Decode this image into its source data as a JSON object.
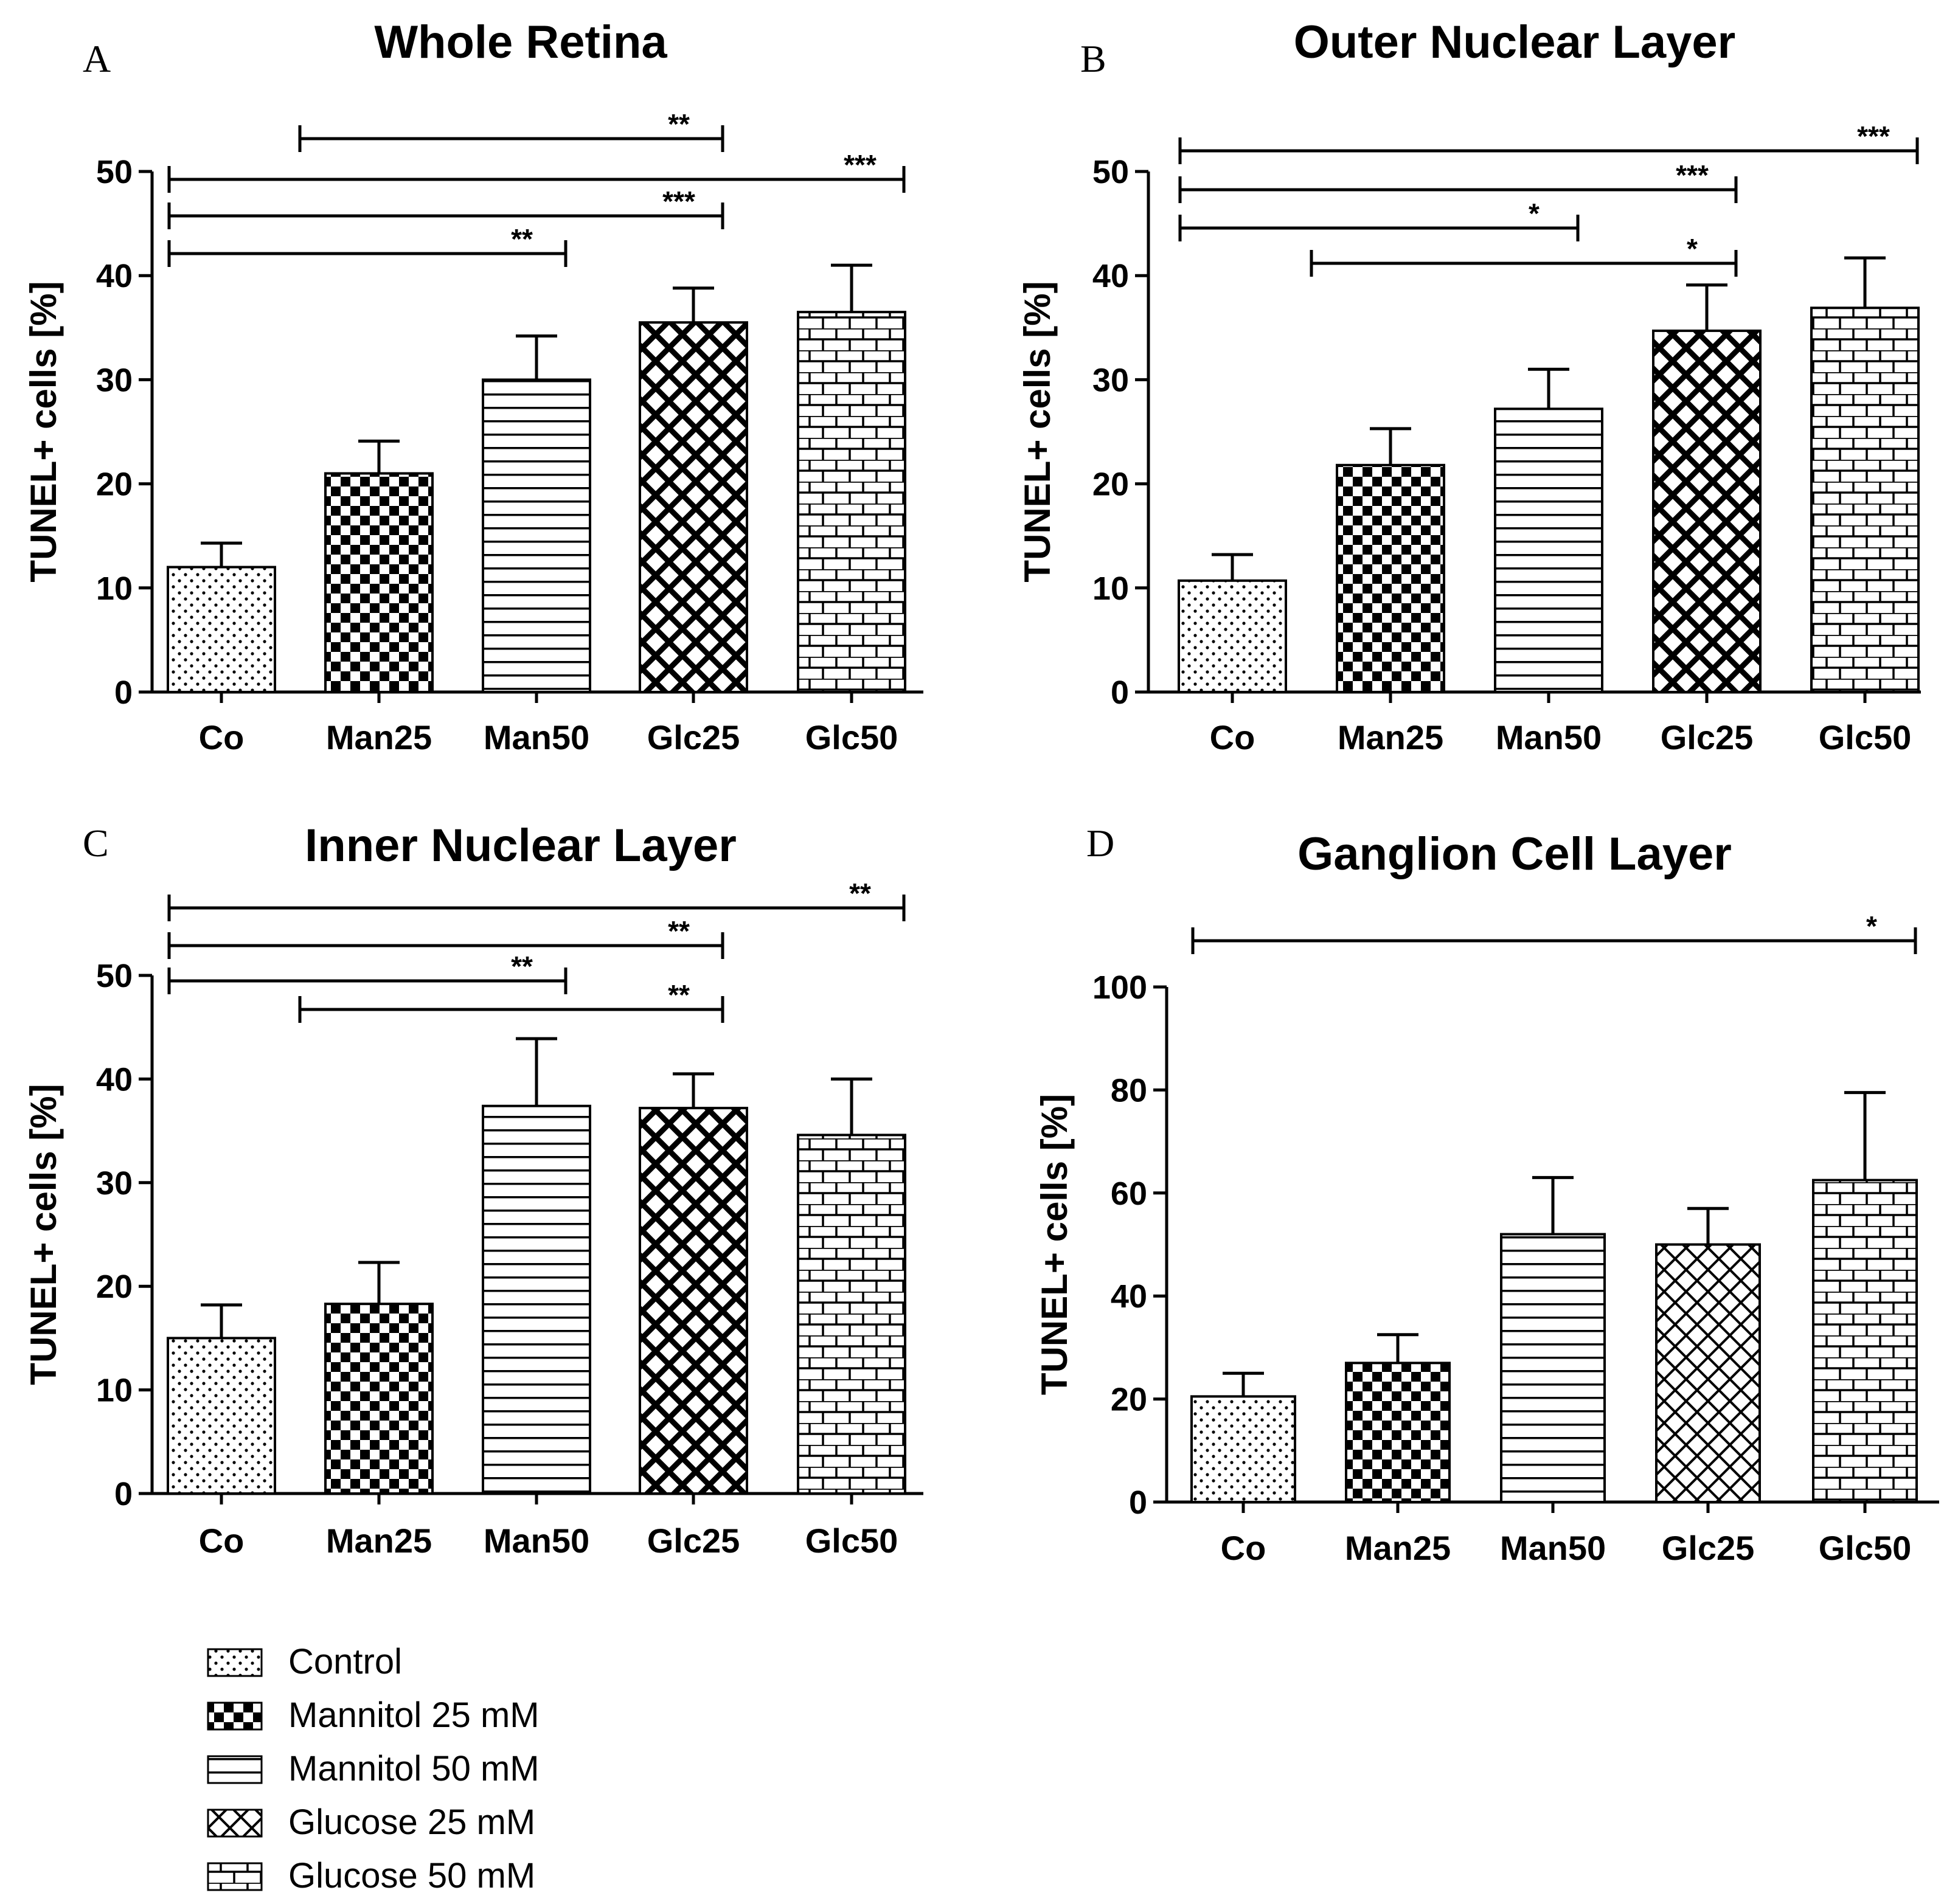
{
  "legend": [
    {
      "key": "dots",
      "label": "Control"
    },
    {
      "key": "checker",
      "label": "Mannitol 25 mM"
    },
    {
      "key": "hlines",
      "label": "Mannitol 50 mM"
    },
    {
      "key": "xhatch",
      "label": "Glucose 25 mM"
    },
    {
      "key": "brick",
      "label": "Glucose 50 mM"
    }
  ],
  "chart_data": [
    {
      "type": "bar",
      "panel": "A",
      "title": "Whole  Retina",
      "ylabel": "TUNEL+ cells [%]",
      "categories": [
        "Co",
        "Man25",
        "Man50",
        "Glc25",
        "Glc50"
      ],
      "patterns": [
        "dots",
        "checker",
        "hlines",
        "xhatch",
        "brick"
      ],
      "values": [
        12,
        21,
        30,
        35.5,
        36.5
      ],
      "errors": [
        2.3,
        3.1,
        4.2,
        3.3,
        4.5
      ],
      "ylim": [
        0,
        50
      ],
      "yticks": [
        0,
        10,
        20,
        30,
        40,
        50
      ],
      "ytick_labels": [
        "0",
        "10",
        "20",
        "30",
        "40",
        "50"
      ],
      "significance": [
        {
          "from": "Man25",
          "to": "Glc25",
          "label": "**"
        },
        {
          "from": "Co",
          "to": "Glc50",
          "label": "***"
        },
        {
          "from": "Co",
          "to": "Glc25",
          "label": "***"
        },
        {
          "from": "Co",
          "to": "Man50",
          "label": "**"
        }
      ]
    },
    {
      "type": "bar",
      "panel": "B",
      "title": "Outer Nuclear Layer",
      "ylabel": "TUNEL+ cells [%]",
      "categories": [
        "Co",
        "Man25",
        "Man50",
        "Glc25",
        "Glc50"
      ],
      "patterns": [
        "dots",
        "checker",
        "hlines",
        "xhatch",
        "brick"
      ],
      "values": [
        10.7,
        21.8,
        27.2,
        34.7,
        36.9
      ],
      "errors": [
        2.5,
        3.5,
        3.8,
        4.4,
        4.8
      ],
      "ylim": [
        0,
        50
      ],
      "yticks": [
        0,
        10,
        20,
        30,
        40,
        50
      ],
      "ytick_labels": [
        "0",
        "10",
        "20",
        "30",
        "40",
        "50"
      ],
      "significance": [
        {
          "from": "Co",
          "to": "Glc50",
          "label": "***"
        },
        {
          "from": "Co",
          "to": "Glc25",
          "label": "***"
        },
        {
          "from": "Co",
          "to": "Man50",
          "label": "*"
        },
        {
          "from": "Man25",
          "to": "Glc25",
          "label": "*"
        }
      ]
    },
    {
      "type": "bar",
      "panel": "C",
      "title": "Inner Nuclear Layer",
      "ylabel": "TUNEL+ cells [%]",
      "categories": [
        "Co",
        "Man25",
        "Man50",
        "Glc25",
        "Glc50"
      ],
      "patterns": [
        "dots",
        "checker",
        "hlines",
        "xhatch",
        "brick"
      ],
      "values": [
        15,
        18.3,
        37.4,
        37.2,
        34.6
      ],
      "errors": [
        3.2,
        4.0,
        6.5,
        3.3,
        5.4
      ],
      "ylim": [
        0,
        50
      ],
      "yticks": [
        0,
        10,
        20,
        30,
        40,
        50
      ],
      "ytick_labels": [
        "0",
        "10",
        "20",
        "30",
        "40",
        "50"
      ],
      "significance": [
        {
          "from": "Co",
          "to": "Glc50",
          "label": "**"
        },
        {
          "from": "Co",
          "to": "Glc25",
          "label": "**"
        },
        {
          "from": "Co",
          "to": "Man50",
          "label": "**"
        },
        {
          "from": "Man25",
          "to": "Glc25",
          "label": "**"
        }
      ]
    },
    {
      "type": "bar",
      "panel": "D",
      "title": "Ganglion Cell Layer",
      "ylabel": "TUNEL+ cells [%]",
      "categories": [
        "Co",
        "Man25",
        "Man50",
        "Glc25",
        "Glc50"
      ],
      "patterns": [
        "dots",
        "checker",
        "hlines",
        "xhatch",
        "brick"
      ],
      "values": [
        20.5,
        27,
        52,
        50,
        62.5
      ],
      "errors": [
        4.5,
        5.5,
        11,
        7,
        17
      ],
      "ylim": [
        0,
        100
      ],
      "yticks": [
        0,
        20,
        40,
        60,
        80,
        100
      ],
      "ytick_labels": [
        "0",
        "20",
        "40",
        "60",
        "80",
        "100"
      ],
      "significance": [
        {
          "from": "Co",
          "to": "Glc50",
          "label": "*"
        }
      ]
    }
  ]
}
